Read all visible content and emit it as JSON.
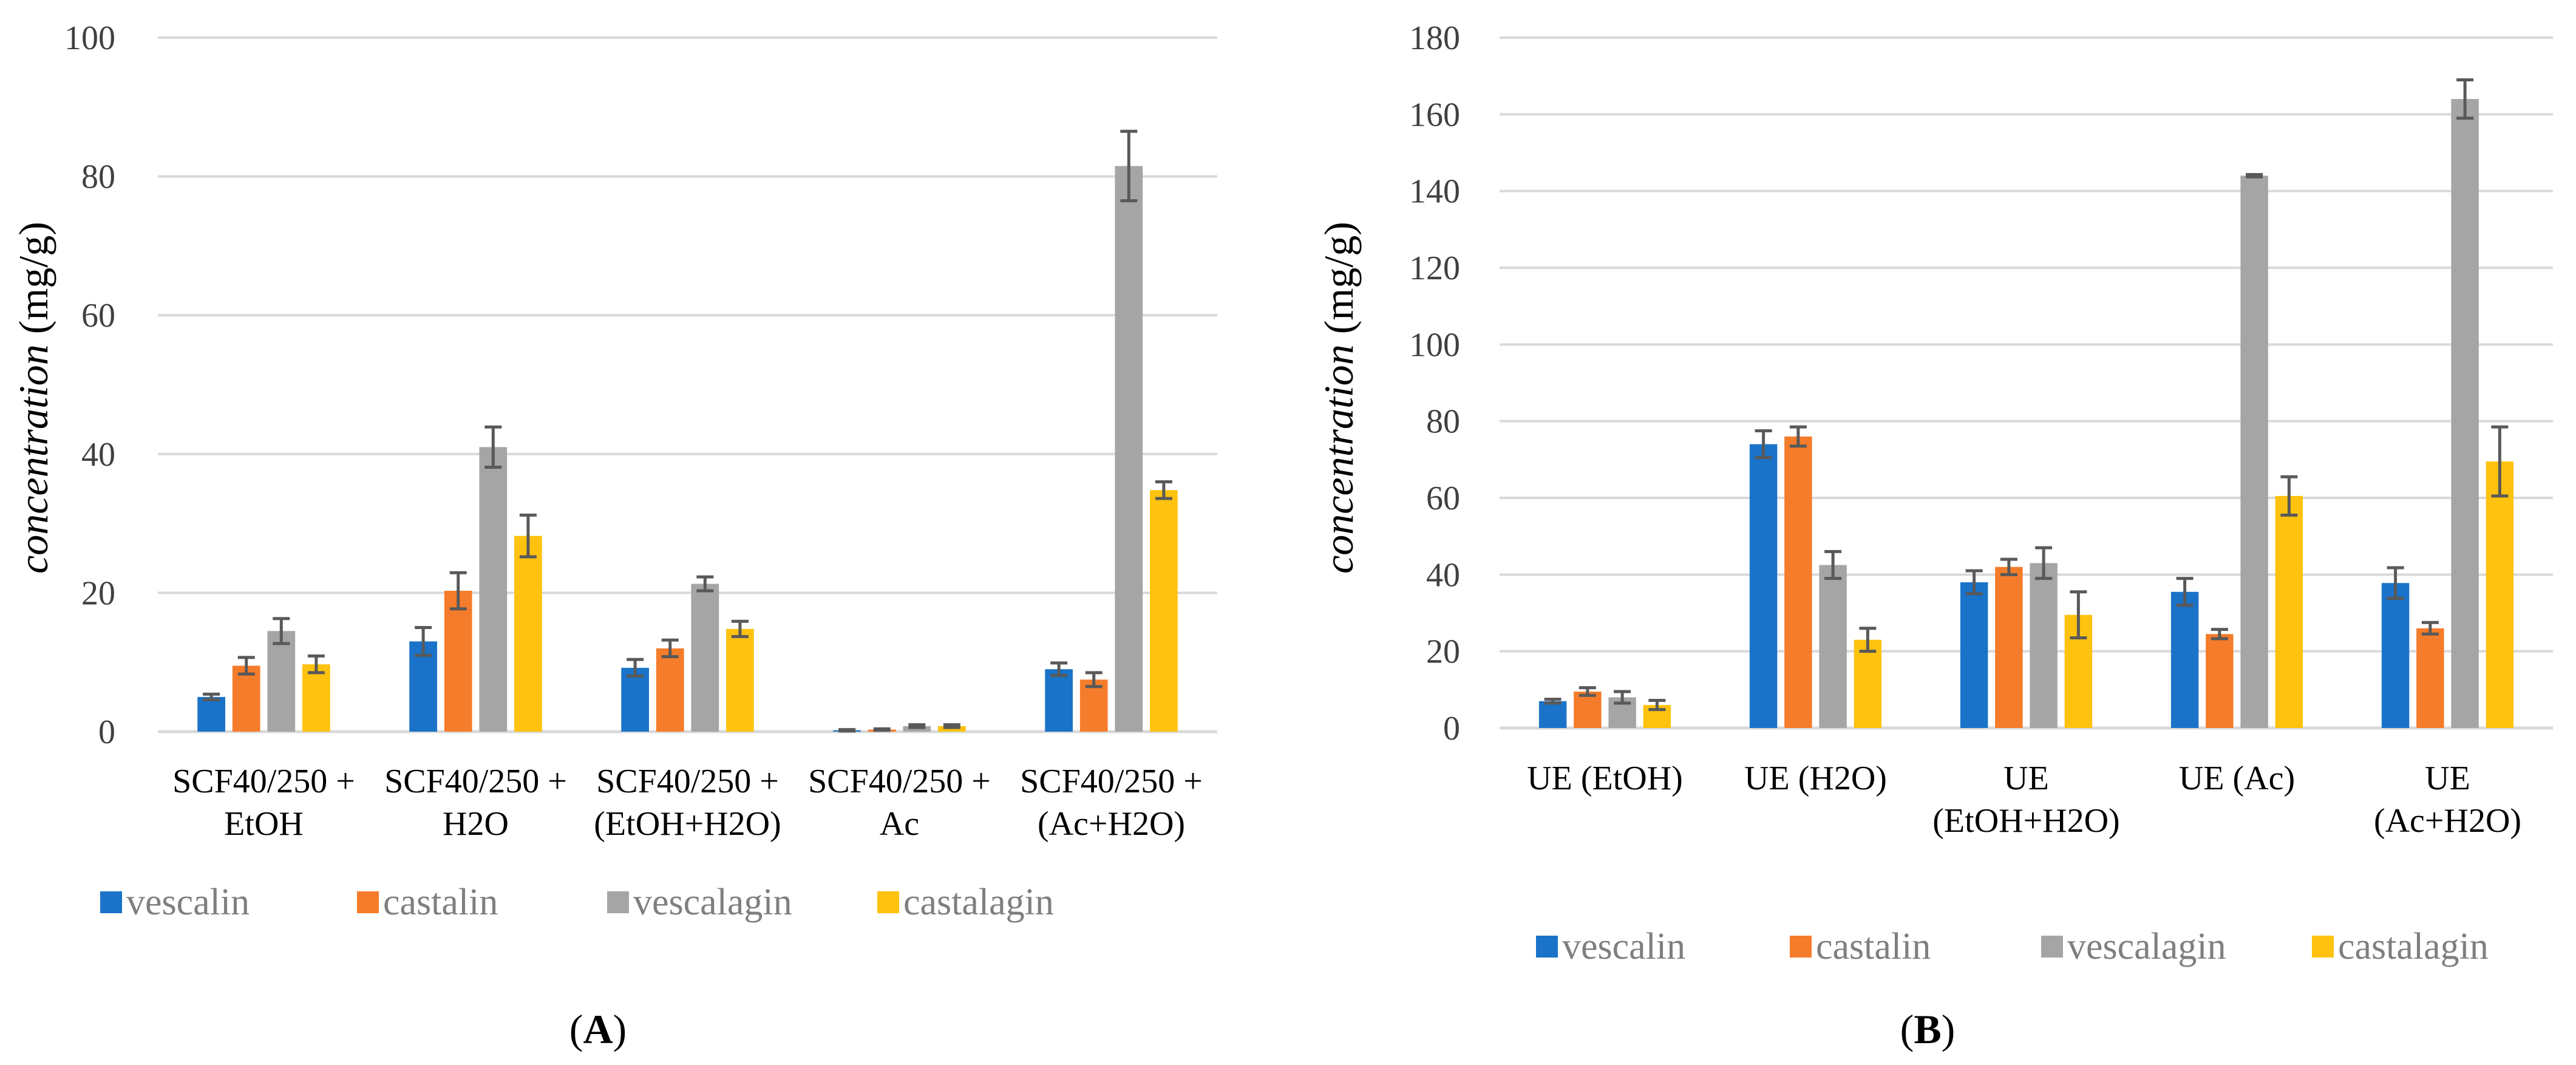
{
  "series_colors": {
    "vescalin": "#1a73c8",
    "castalin": "#f57c2a",
    "vescalagin": "#a5a5a5",
    "castalagin": "#ffc20e"
  },
  "chart_data": [
    {
      "type": "bar",
      "panel_label": "A",
      "ylabel_italic": "concentration",
      "ylabel_unit": "(mg/g)",
      "ylim": [
        0,
        100
      ],
      "yticks": [
        0,
        20,
        40,
        60,
        80,
        100
      ],
      "grid": true,
      "legend_position": "bottom",
      "categories": [
        [
          "SCF40/250 +",
          "EtOH"
        ],
        [
          "SCF40/250 +",
          "H2O"
        ],
        [
          "SCF40/250 +",
          "(EtOH+H2O)"
        ],
        [
          "SCF40/250 +",
          "Ac"
        ],
        [
          "SCF40/250 +",
          "(Ac+H2O)"
        ]
      ],
      "series": [
        {
          "name": "vescalin",
          "values": [
            5.0,
            13.0,
            9.2,
            0.2,
            9.0
          ],
          "errors": [
            0.4,
            2.0,
            1.2,
            0.1,
            0.9
          ]
        },
        {
          "name": "castalin",
          "values": [
            9.5,
            20.3,
            12.0,
            0.3,
            7.5
          ],
          "errors": [
            1.2,
            2.6,
            1.2,
            0.1,
            1.0
          ]
        },
        {
          "name": "vescalagin",
          "values": [
            14.5,
            41.0,
            21.3,
            0.8,
            81.5
          ],
          "errors": [
            1.8,
            2.9,
            1.0,
            0.2,
            5.0
          ]
        },
        {
          "name": "castalagin",
          "values": [
            9.7,
            28.2,
            14.8,
            0.8,
            34.8
          ],
          "errors": [
            1.2,
            3.0,
            1.1,
            0.2,
            1.2
          ]
        }
      ]
    },
    {
      "type": "bar",
      "panel_label": "B",
      "ylabel_italic": "concentration",
      "ylabel_unit": "(mg/g)",
      "ylim": [
        0,
        180
      ],
      "yticks": [
        0,
        20,
        40,
        60,
        80,
        100,
        120,
        140,
        160,
        180
      ],
      "grid": true,
      "legend_position": "bottom",
      "categories": [
        [
          "UE (EtOH)"
        ],
        [
          "UE (H2O)"
        ],
        [
          "UE",
          "(EtOH+H2O)"
        ],
        [
          "UE (Ac)"
        ],
        [
          "UE",
          "(Ac+H2O)"
        ]
      ],
      "series": [
        {
          "name": "vescalin",
          "values": [
            7.0,
            74.0,
            38.0,
            35.5,
            37.8
          ],
          "errors": [
            0.5,
            3.5,
            3.0,
            3.5,
            4.0
          ]
        },
        {
          "name": "castalin",
          "values": [
            9.5,
            76.0,
            42.0,
            24.5,
            26.0
          ],
          "errors": [
            1.0,
            2.5,
            2.0,
            1.2,
            1.5
          ]
        },
        {
          "name": "vescalagin",
          "values": [
            8.0,
            42.5,
            43.0,
            144.0,
            164.0
          ],
          "errors": [
            1.5,
            3.5,
            4.0,
            0.3,
            5.0
          ]
        },
        {
          "name": "castalagin",
          "values": [
            6.0,
            23.0,
            29.5,
            60.5,
            69.5
          ],
          "errors": [
            1.2,
            3.0,
            6.0,
            5.0,
            9.0
          ]
        }
      ]
    }
  ]
}
